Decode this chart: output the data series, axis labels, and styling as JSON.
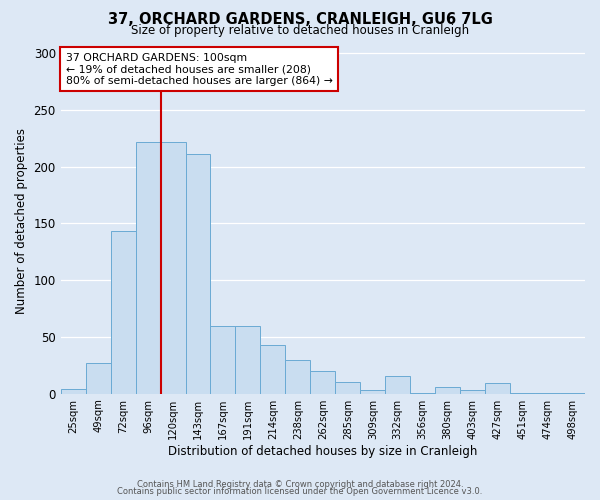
{
  "title": "37, ORCHARD GARDENS, CRANLEIGH, GU6 7LG",
  "subtitle": "Size of property relative to detached houses in Cranleigh",
  "xlabel": "Distribution of detached houses by size in Cranleigh",
  "ylabel": "Number of detached properties",
  "bar_labels": [
    "25sqm",
    "49sqm",
    "72sqm",
    "96sqm",
    "120sqm",
    "143sqm",
    "167sqm",
    "191sqm",
    "214sqm",
    "238sqm",
    "262sqm",
    "285sqm",
    "309sqm",
    "332sqm",
    "356sqm",
    "380sqm",
    "403sqm",
    "427sqm",
    "451sqm",
    "474sqm",
    "498sqm"
  ],
  "bar_values": [
    4,
    27,
    143,
    222,
    222,
    211,
    60,
    60,
    43,
    30,
    20,
    10,
    3,
    16,
    1,
    6,
    3,
    9,
    1,
    1,
    1
  ],
  "bar_color": "#c9ddf0",
  "bar_edge_color": "#6aaad4",
  "ylim": [
    0,
    305
  ],
  "yticks": [
    0,
    50,
    100,
    150,
    200,
    250,
    300
  ],
  "property_line_color": "#cc0000",
  "property_line_bin": 3,
  "annotation_text": "37 ORCHARD GARDENS: 100sqm\n← 19% of detached houses are smaller (208)\n80% of semi-detached houses are larger (864) →",
  "annotation_box_edge_color": "#cc0000",
  "footer_line1": "Contains HM Land Registry data © Crown copyright and database right 2024.",
  "footer_line2": "Contains public sector information licensed under the Open Government Licence v3.0.",
  "fig_bg_color": "#dde8f5",
  "plot_bg_color": "#dde8f5",
  "grid_color": "#ffffff"
}
